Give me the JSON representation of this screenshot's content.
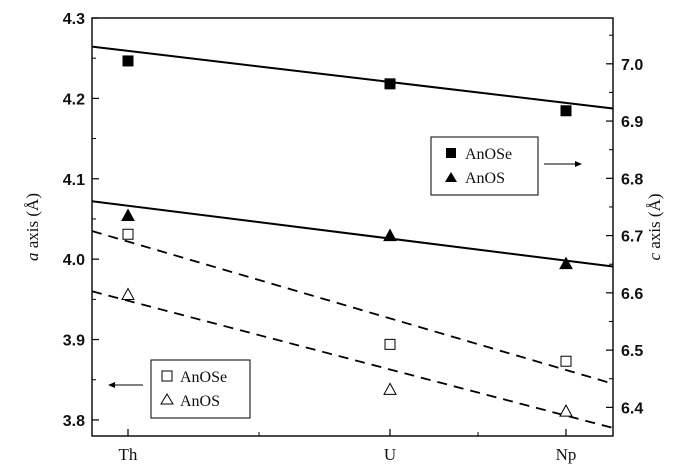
{
  "chart_data": {
    "type": "scatter",
    "categories": [
      "Th",
      "U",
      "Np"
    ],
    "left_axis": {
      "label_italic": "a",
      "label_rest": " axis (Å)",
      "range": [
        3.78,
        4.3
      ],
      "ticks": [
        "3.8",
        "3.9",
        "4.0",
        "4.1",
        "4.2",
        "4.3"
      ],
      "tick_values": [
        3.8,
        3.9,
        4.0,
        4.1,
        4.2,
        4.3
      ]
    },
    "right_axis": {
      "label_italic": "c",
      "label_rest": " axis (Å)",
      "range": [
        6.35,
        7.08
      ],
      "ticks": [
        "6.4",
        "6.5",
        "6.6",
        "6.7",
        "6.8",
        "6.9",
        "7.0"
      ],
      "tick_values": [
        6.4,
        6.5,
        6.6,
        6.7,
        6.8,
        6.9,
        7.0
      ]
    },
    "series": [
      {
        "name": "AnOSe",
        "axis": "right",
        "marker": "square",
        "filled": true,
        "fit": "solid",
        "values": [
          7.005,
          6.965,
          6.918
        ]
      },
      {
        "name": "AnOS",
        "axis": "right",
        "marker": "triangle",
        "filled": true,
        "fit": "solid",
        "values": [
          6.735,
          6.7,
          6.651
        ]
      },
      {
        "name": "AnOSe",
        "axis": "left",
        "marker": "square",
        "filled": false,
        "fit": "dashed",
        "values": [
          4.031,
          3.894,
          3.873
        ]
      },
      {
        "name": "AnOS",
        "axis": "left",
        "marker": "triangle",
        "filled": false,
        "fit": "dashed",
        "values": [
          3.956,
          3.838,
          3.811
        ]
      }
    ],
    "fit_lines": [
      {
        "style": "solid",
        "axis": "right",
        "y_at_start": 7.03,
        "y_at_end": 6.922
      },
      {
        "style": "solid",
        "axis": "right",
        "y_at_start": 6.76,
        "y_at_end": 6.646
      },
      {
        "style": "dashed",
        "axis": "left",
        "y_at_start": 4.035,
        "y_at_end": 3.845
      },
      {
        "style": "dashed",
        "axis": "left",
        "y_at_start": 3.96,
        "y_at_end": 3.79
      }
    ],
    "legends": [
      {
        "position": "right",
        "arrow": "right",
        "entries": [
          {
            "label": "AnOSe",
            "marker": "square",
            "filled": true
          },
          {
            "label": "AnOS",
            "marker": "triangle",
            "filled": true
          }
        ]
      },
      {
        "position": "bottom-left",
        "arrow": "left",
        "entries": [
          {
            "label": "AnOSe",
            "marker": "square",
            "filled": false
          },
          {
            "label": "AnOS",
            "marker": "triangle",
            "filled": false
          }
        ]
      }
    ],
    "grid": false
  }
}
